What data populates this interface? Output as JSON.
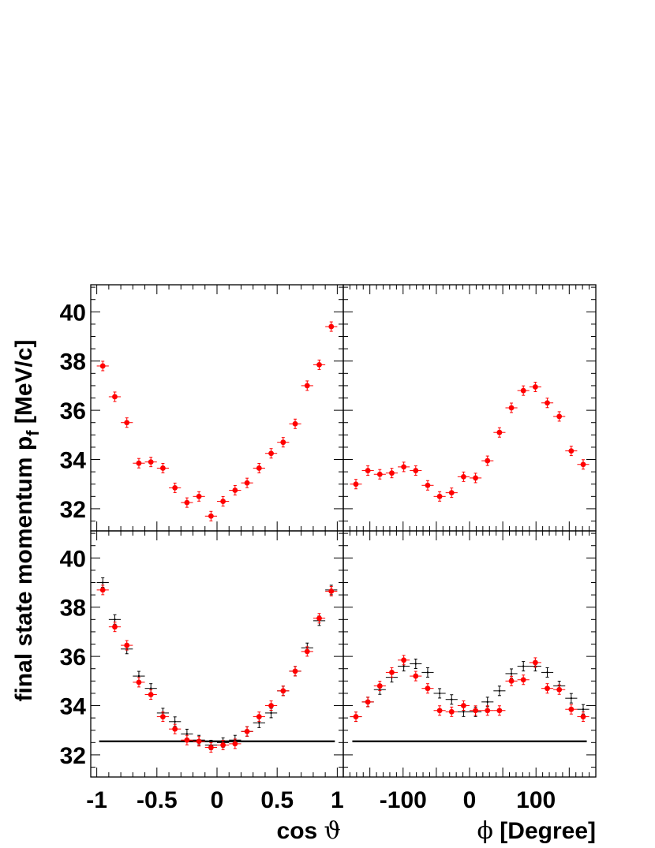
{
  "figure": {
    "ylabel": "final state momentum p",
    "ylabel_sub": "f",
    "ylabel_unit": " [MeV/c]",
    "xlabel_left_symbol": "ϑ",
    "xlabel_left_prefix": "cos ",
    "xlabel_right_symbol": "ϕ",
    "xlabel_right_suffix": " [Degree]"
  },
  "chart_data": [
    {
      "type": "scatter",
      "panel": "top-left",
      "xlim": [
        -1.05,
        1.05
      ],
      "ylim": [
        31.1,
        41.1
      ],
      "x_ticks": [
        "-1",
        "-0.5",
        "0",
        "0.5",
        "1"
      ],
      "y_ticks": [
        "32",
        "34",
        "36",
        "38",
        "40"
      ],
      "series": [
        {
          "color": "#ff0000",
          "x": [
            -0.95,
            -0.85,
            -0.75,
            -0.65,
            -0.55,
            -0.45,
            -0.35,
            -0.25,
            -0.15,
            -0.05,
            0.05,
            0.15,
            0.25,
            0.35,
            0.45,
            0.55,
            0.65,
            0.75,
            0.85,
            0.95
          ],
          "y": [
            37.8,
            36.55,
            35.5,
            33.85,
            33.9,
            33.65,
            32.85,
            32.25,
            32.5,
            31.7,
            32.3,
            32.75,
            33.05,
            33.65,
            34.25,
            34.7,
            35.45,
            37.0,
            37.85,
            39.4
          ]
        }
      ]
    },
    {
      "type": "scatter",
      "panel": "top-right",
      "xlim": [
        -190,
        190
      ],
      "ylim": [
        31.1,
        41.1
      ],
      "x_ticks": [
        "-100",
        "0",
        "100"
      ],
      "y_ticks": [
        "32",
        "34",
        "36",
        "38",
        "40"
      ],
      "series": [
        {
          "color": "#ff0000",
          "x": [
            -171,
            -153,
            -135,
            -117,
            -99,
            -81,
            -63,
            -45,
            -27,
            -9,
            9,
            27,
            45,
            63,
            81,
            99,
            117,
            135,
            153,
            171
          ],
          "y": [
            33.0,
            33.55,
            33.4,
            33.45,
            33.7,
            33.55,
            32.95,
            32.5,
            32.65,
            33.3,
            33.25,
            33.95,
            35.1,
            36.1,
            36.8,
            36.95,
            36.3,
            35.75,
            34.35,
            33.8
          ]
        }
      ]
    },
    {
      "type": "scatter",
      "panel": "bottom-left",
      "xlim": [
        -1.05,
        1.05
      ],
      "ylim": [
        31.1,
        41.1
      ],
      "x_ticks": [
        "-1",
        "-0.5",
        "0",
        "0.5",
        "1"
      ],
      "y_ticks": [
        "32",
        "34",
        "36",
        "38",
        "40"
      ],
      "reference_line": 32.55,
      "series": [
        {
          "color": "#000000",
          "x": [
            -0.95,
            -0.85,
            -0.75,
            -0.65,
            -0.55,
            -0.45,
            -0.35,
            -0.25,
            -0.15,
            -0.05,
            0.05,
            0.15,
            0.25,
            0.35,
            0.45,
            0.55,
            0.65,
            0.75,
            0.85,
            0.95
          ],
          "y": [
            39.0,
            37.5,
            36.3,
            35.2,
            34.7,
            33.7,
            33.35,
            32.85,
            32.6,
            32.4,
            32.5,
            32.6,
            32.95,
            33.3,
            33.7,
            34.6,
            35.4,
            36.35,
            37.45,
            38.7
          ]
        },
        {
          "color": "#ff0000",
          "x": [
            -0.95,
            -0.85,
            -0.75,
            -0.65,
            -0.55,
            -0.45,
            -0.35,
            -0.25,
            -0.15,
            -0.05,
            0.05,
            0.15,
            0.25,
            0.35,
            0.45,
            0.55,
            0.65,
            0.75,
            0.85,
            0.95
          ],
          "y": [
            38.7,
            37.2,
            36.45,
            34.95,
            34.45,
            33.55,
            33.05,
            32.6,
            32.55,
            32.3,
            32.4,
            32.45,
            32.95,
            33.55,
            34.0,
            34.6,
            35.4,
            36.2,
            37.55,
            38.65
          ]
        }
      ]
    },
    {
      "type": "scatter",
      "panel": "bottom-right",
      "xlim": [
        -190,
        190
      ],
      "ylim": [
        31.1,
        41.1
      ],
      "x_ticks": [
        "-100",
        "0",
        "100"
      ],
      "y_ticks": [
        "32",
        "34",
        "36",
        "38",
        "40"
      ],
      "reference_line": 32.55,
      "series": [
        {
          "color": "#000000",
          "x": [
            -171,
            -153,
            -135,
            -117,
            -99,
            -81,
            -63,
            -45,
            -27,
            -9,
            9,
            27,
            45,
            63,
            81,
            99,
            117,
            135,
            153,
            171
          ],
          "y": [
            33.55,
            34.15,
            34.65,
            35.15,
            35.6,
            35.7,
            35.35,
            34.5,
            34.25,
            33.75,
            33.75,
            34.15,
            34.6,
            35.3,
            35.6,
            35.6,
            35.35,
            34.8,
            34.3,
            33.85
          ]
        },
        {
          "color": "#ff0000",
          "x": [
            -171,
            -153,
            -135,
            -117,
            -99,
            -81,
            -63,
            -45,
            -27,
            -9,
            9,
            27,
            45,
            63,
            81,
            99,
            117,
            135,
            153,
            171
          ],
          "y": [
            33.55,
            34.15,
            34.8,
            35.35,
            35.85,
            35.2,
            34.7,
            33.8,
            33.75,
            34.0,
            33.8,
            33.8,
            33.8,
            35.0,
            35.05,
            35.75,
            34.7,
            34.65,
            33.85,
            33.55
          ]
        }
      ]
    }
  ]
}
